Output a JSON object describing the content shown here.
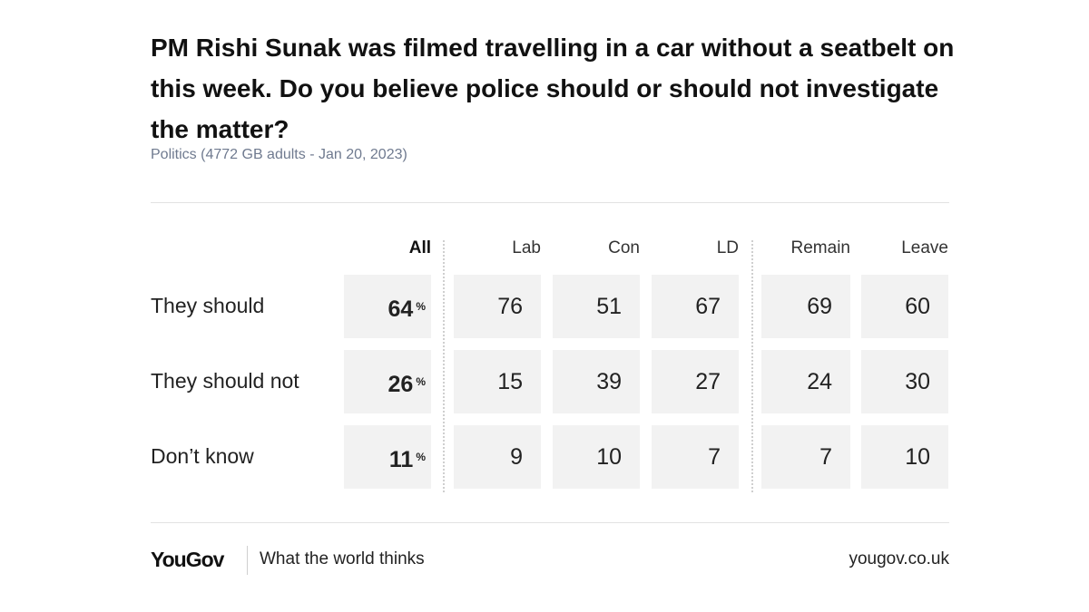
{
  "chart_data": {
    "type": "table",
    "title": "PM Rishi Sunak was filmed travelling in a car without a seatbelt on this week. Do you believe police should or should not investigate the matter?",
    "subtitle": "Politics (4772 GB adults - Jan 20, 2023)",
    "columns": [
      "All",
      "Lab",
      "Con",
      "LD",
      "Remain",
      "Leave"
    ],
    "rows": [
      {
        "label": "They should",
        "values": [
          64,
          76,
          51,
          67,
          69,
          60
        ]
      },
      {
        "label": "They should not",
        "values": [
          26,
          15,
          39,
          27,
          24,
          30
        ]
      },
      {
        "label": "Don’t know",
        "values": [
          11,
          9,
          10,
          7,
          7,
          10
        ]
      }
    ],
    "unit": "%"
  },
  "footer": {
    "brand": "YouGov",
    "tagline": "What the world thinks",
    "url": "yougov.co.uk"
  }
}
